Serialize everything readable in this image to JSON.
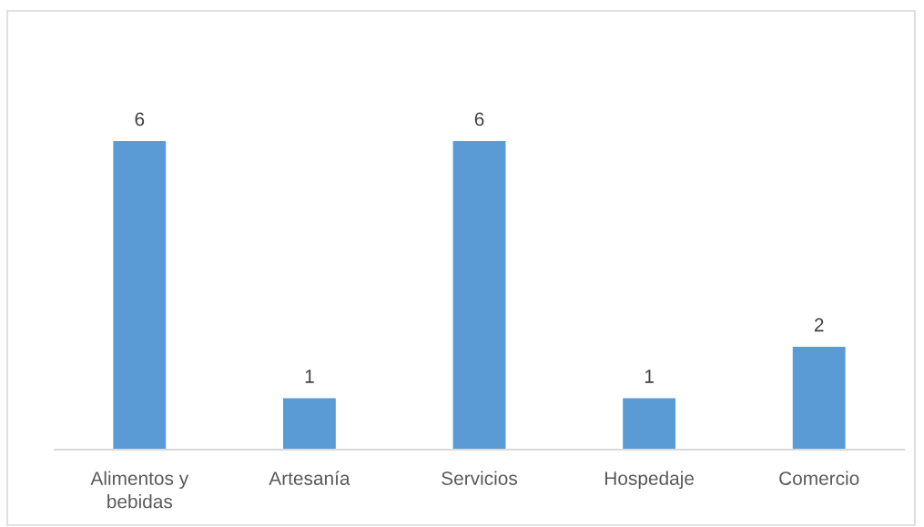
{
  "chart_data": {
    "type": "bar",
    "categories": [
      "Alimentos y bebidas",
      "Artesanía",
      "Servicios",
      "Hospedaje",
      "Comercio"
    ],
    "values": [
      6,
      1,
      6,
      1,
      2
    ],
    "color": "#5b9bd5",
    "data_labels": true,
    "tick_labels": "x"
  }
}
